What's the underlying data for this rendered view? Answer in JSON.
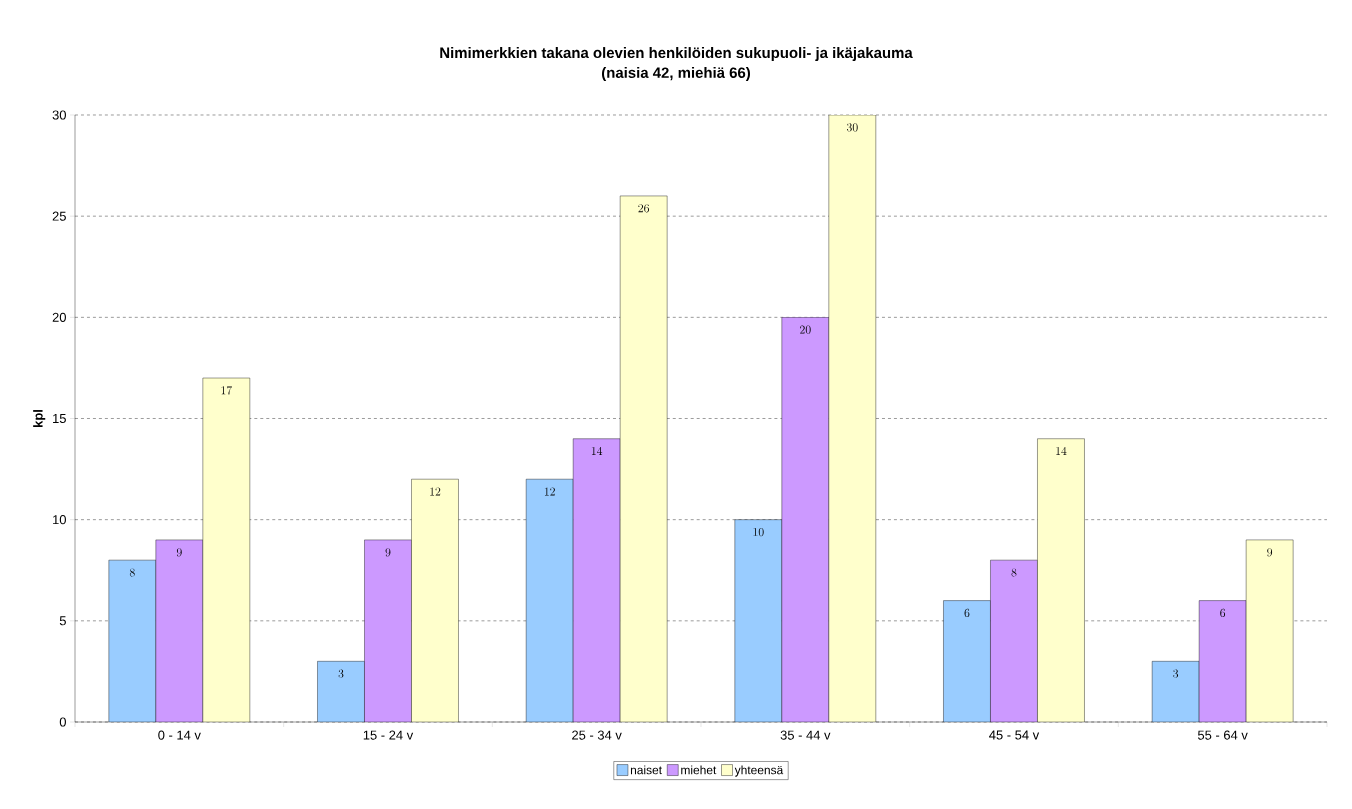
{
  "chart_data": {
    "type": "bar",
    "title": "Nimimerkkien takana olevien henkilöiden sukupuoli- ja ikäjakauma",
    "subtitle": "(naisia 42, miehiä 66)",
    "ylabel": "kpl",
    "categories": [
      "0 - 14 v",
      "15 - 24 v",
      "25 - 34 v",
      "35 - 44 v",
      "45 - 54 v",
      "55 - 64 v"
    ],
    "series": [
      {
        "name": "naiset",
        "color": "#99ccff",
        "values": [
          8,
          3,
          12,
          10,
          6,
          3
        ]
      },
      {
        "name": "miehet",
        "color": "#cc99ff",
        "values": [
          9,
          9,
          14,
          20,
          8,
          6
        ]
      },
      {
        "name": "yhteensä",
        "color": "#ffffcc",
        "values": [
          17,
          12,
          26,
          30,
          14,
          9
        ]
      }
    ],
    "ylim": [
      0,
      30
    ],
    "yticks": [
      0,
      5,
      10,
      15,
      20,
      25,
      30
    ],
    "grid": "y",
    "legend": "bottom",
    "data_labels": true
  }
}
